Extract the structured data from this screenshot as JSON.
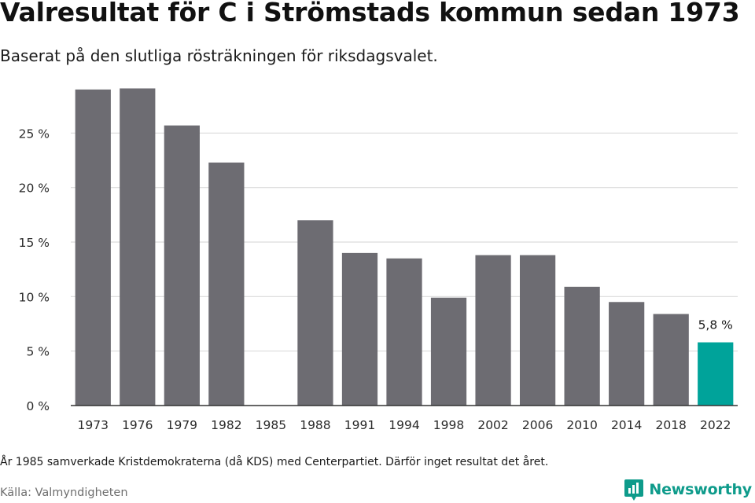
{
  "header": {
    "title": "Valresultat för C i Strömstads kommun sedan 1973",
    "subtitle": "Baserat på den slutliga rösträkningen för riksdagsvalet."
  },
  "chart_data": {
    "type": "bar",
    "title": "Valresultat för C i Strömstads kommun sedan 1973",
    "subtitle": "Baserat på den slutliga rösträkningen för riksdagsvalet.",
    "categories": [
      "1973",
      "1976",
      "1979",
      "1982",
      "1985",
      "1988",
      "1991",
      "1994",
      "1998",
      "2002",
      "2006",
      "2010",
      "2014",
      "2018",
      "2022"
    ],
    "values": [
      29.0,
      29.1,
      25.7,
      22.3,
      null,
      17.0,
      14.0,
      13.5,
      9.9,
      13.8,
      13.8,
      10.9,
      9.5,
      8.4,
      5.8
    ],
    "yticks": [
      "0 %",
      "5 %",
      "10 %",
      "15 %",
      "20 %",
      "25 %"
    ],
    "ytick_values": [
      0,
      5,
      10,
      15,
      20,
      25
    ],
    "ylim": [
      0,
      30
    ],
    "grid": true,
    "bar_color": "#6d6c72",
    "highlight_color": "#00a39a",
    "highlight_index": 14,
    "data_labels": [
      {
        "index": 14,
        "text": "5,8 %"
      }
    ],
    "xlabel": "",
    "ylabel": ""
  },
  "footer": {
    "note": "År 1985 samverkade Kristdemokraterna (då KDS) med Centerpartiet. Därför inget resultat det året.",
    "source": "Källa: Valmyndigheten",
    "brand": "Newsworthy",
    "brand_color": "#0e9b8b"
  }
}
